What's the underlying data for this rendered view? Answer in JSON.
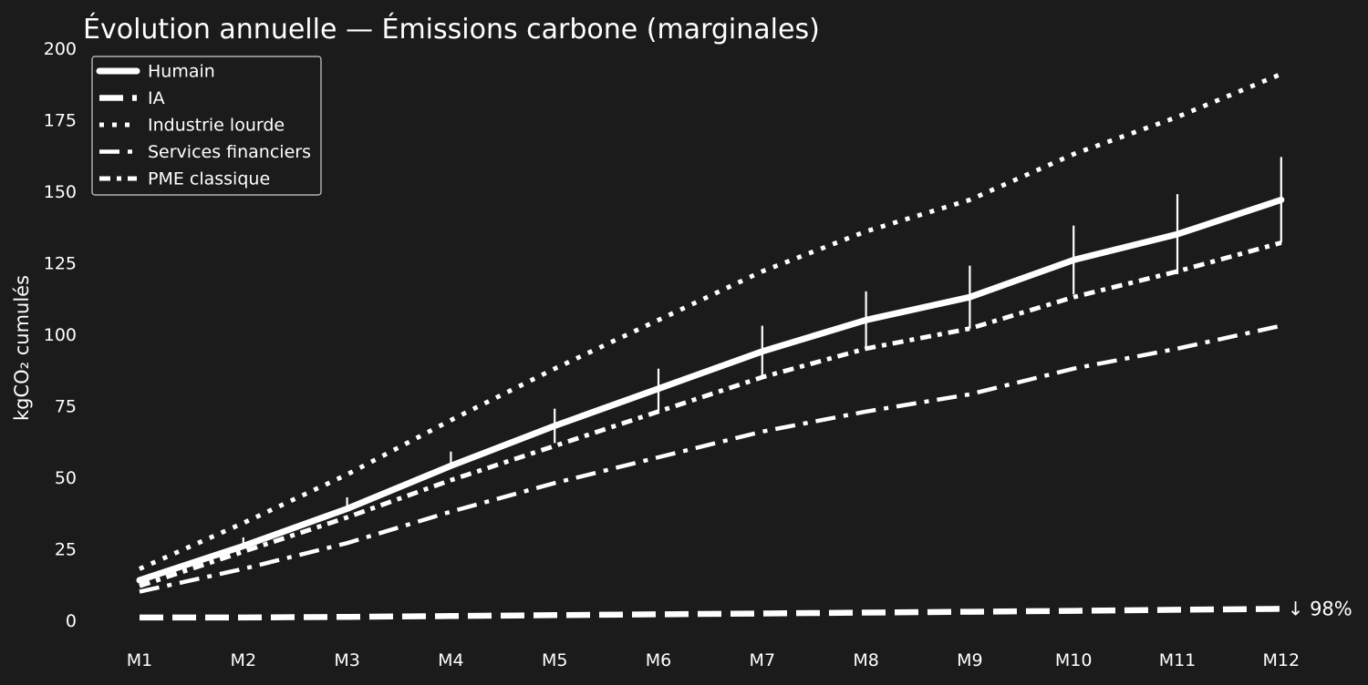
{
  "colors": {
    "background": "#1b1b1b",
    "foreground": "#ffffff"
  },
  "chart_data": {
    "type": "line",
    "title": "Évolution annuelle — Émissions carbone (marginales)",
    "xlabel": "",
    "ylabel": "kgCO₂ cumulés",
    "categories": [
      "M1",
      "M2",
      "M3",
      "M4",
      "M5",
      "M6",
      "M7",
      "M8",
      "M9",
      "M10",
      "M11",
      "M12"
    ],
    "ylim": [
      0,
      200
    ],
    "yticks": [
      0,
      25,
      50,
      75,
      100,
      125,
      150,
      175,
      200
    ],
    "grid": false,
    "legend_position": "top-left",
    "series": [
      {
        "name": "Humain",
        "style": "solid",
        "values": [
          14,
          26,
          39,
          54,
          68,
          81,
          94,
          105,
          113,
          126,
          135,
          147
        ],
        "error_upper": [
          0,
          3,
          4,
          5,
          6,
          7,
          9,
          10,
          11,
          12,
          14,
          15
        ],
        "error_lower": [
          0,
          0,
          0,
          0,
          6,
          8,
          9,
          10,
          11,
          12,
          14,
          15
        ]
      },
      {
        "name": "IA",
        "style": "dashed",
        "values": [
          1,
          1,
          1.2,
          1.5,
          1.8,
          2.1,
          2.4,
          2.7,
          3,
          3.3,
          3.7,
          4
        ]
      },
      {
        "name": "Industrie lourde",
        "style": "dotted",
        "values": [
          18,
          34,
          51,
          70,
          88,
          105,
          122,
          136,
          147,
          163,
          176,
          191
        ]
      },
      {
        "name": "Services financiers",
        "style": "dashdot",
        "values": [
          10,
          18,
          27,
          38,
          48,
          57,
          66,
          73,
          79,
          88,
          95,
          103
        ]
      },
      {
        "name": "PME classique",
        "style": "dashdot-dense",
        "values": [
          12,
          24,
          36,
          49,
          61,
          73,
          85,
          95,
          102,
          113,
          122,
          132
        ]
      }
    ],
    "annotations": [
      {
        "text": "↓ 98%",
        "series": "IA",
        "category": "M12"
      }
    ]
  }
}
